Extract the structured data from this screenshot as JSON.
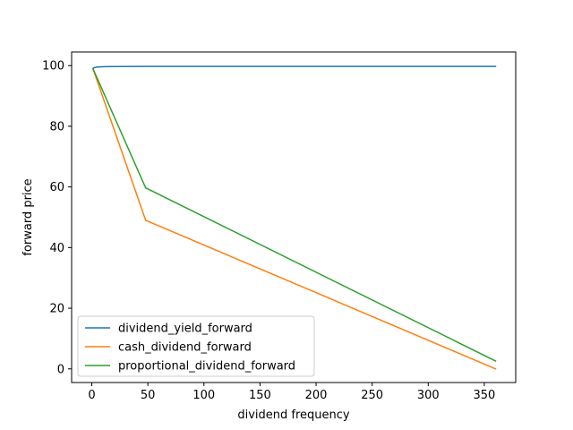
{
  "chart_data": {
    "type": "line",
    "title": "",
    "xlabel": "dividend frequency",
    "ylabel": "forward price",
    "xlim": [
      -18,
      378
    ],
    "ylim": [
      -4.5,
      104.5
    ],
    "xticks": [
      0,
      50,
      100,
      150,
      200,
      250,
      300,
      350
    ],
    "yticks": [
      0,
      20,
      40,
      60,
      80,
      100
    ],
    "grid": false,
    "legend": "lower-left",
    "series": [
      {
        "name": "dividend_yield_forward",
        "color": "#1f77b4",
        "points": [
          [
            1,
            99.0
          ],
          [
            2,
            99.3
          ],
          [
            4,
            99.5
          ],
          [
            8,
            99.6
          ],
          [
            12,
            99.65
          ],
          [
            24,
            99.7
          ],
          [
            48,
            99.72
          ],
          [
            120,
            99.74
          ],
          [
            240,
            99.75
          ],
          [
            360,
            99.75
          ]
        ]
      },
      {
        "name": "cash_dividend_forward",
        "color": "#ff7f0e",
        "points": [
          [
            1,
            99.0
          ],
          [
            48,
            49.0
          ],
          [
            360,
            0.0
          ]
        ]
      },
      {
        "name": "proportional_dividend_forward",
        "color": "#2ca02c",
        "points": [
          [
            1,
            99.0
          ],
          [
            48,
            59.7
          ],
          [
            360,
            2.6
          ]
        ]
      }
    ]
  }
}
